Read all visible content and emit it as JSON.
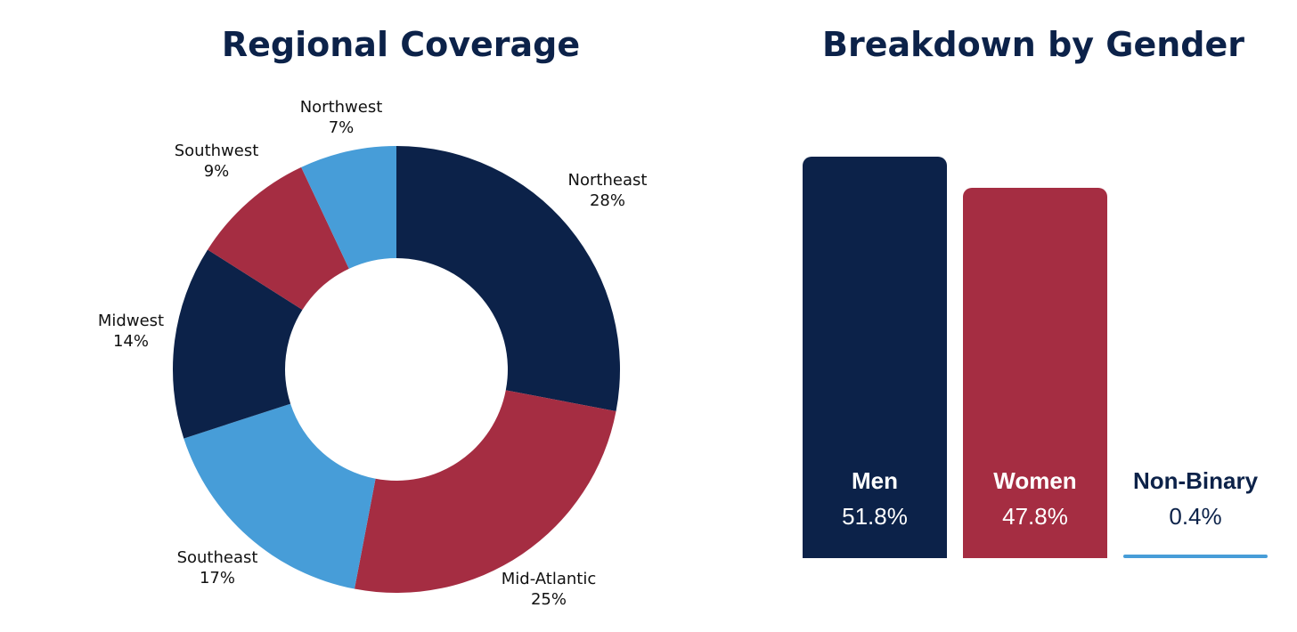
{
  "colors": {
    "navy": "#0c2249",
    "red": "#a52d42",
    "blue": "#479dd8"
  },
  "chart_data": [
    {
      "type": "pie",
      "subtype": "donut",
      "title": "Regional Coverage",
      "categories": [
        "Northeast",
        "Mid-Atlantic",
        "Southeast",
        "Midwest",
        "Southwest",
        "Northwest"
      ],
      "values": [
        28,
        25,
        17,
        14,
        9,
        7
      ],
      "value_labels": [
        "28%",
        "25%",
        "17%",
        "14%",
        "9%",
        "7%"
      ],
      "slice_colors": [
        "#0c2249",
        "#a52d42",
        "#479dd8",
        "#0c2249",
        "#a52d42",
        "#479dd8"
      ],
      "start": "top",
      "direction": "clockwise"
    },
    {
      "type": "bar",
      "title": "Breakdown by Gender",
      "categories": [
        "Men",
        "Women",
        "Non-Binary"
      ],
      "values": [
        51.8,
        47.8,
        0.4
      ],
      "value_labels": [
        "51.8%",
        "47.8%",
        "0.4%"
      ],
      "bar_colors": [
        "#0c2249",
        "#a52d42",
        "#479dd8"
      ],
      "ylim": [
        0,
        51.8
      ]
    }
  ]
}
